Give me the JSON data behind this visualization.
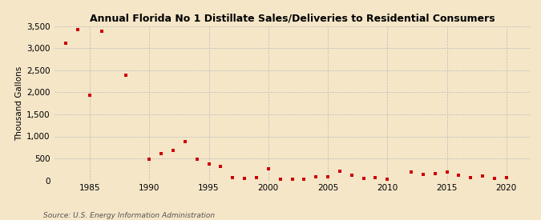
{
  "title": "Annual Florida No 1 Distillate Sales/Deliveries to Residential Consumers",
  "ylabel": "Thousand Gallons",
  "source": "Source: U.S. Energy Information Administration",
  "background_color": "#f5e6c8",
  "plot_bg_color": "#f5e6c8",
  "marker_color": "#cc0000",
  "grid_color": "#bbbbbb",
  "years": [
    1983,
    1984,
    1985,
    1986,
    1988,
    1990,
    1991,
    1992,
    1993,
    1994,
    1995,
    1996,
    1997,
    1998,
    1999,
    2000,
    2001,
    2002,
    2003,
    2004,
    2005,
    2006,
    2007,
    2008,
    2009,
    2010,
    2012,
    2013,
    2014,
    2015,
    2016,
    2017,
    2018,
    2019,
    2020
  ],
  "values": [
    3120,
    3420,
    1930,
    3390,
    2390,
    480,
    610,
    690,
    880,
    490,
    370,
    310,
    55,
    45,
    70,
    260,
    20,
    25,
    30,
    75,
    75,
    210,
    110,
    50,
    55,
    25,
    190,
    140,
    160,
    185,
    120,
    60,
    100,
    45,
    60
  ],
  "xlim": [
    1982,
    2022
  ],
  "ylim": [
    0,
    3500
  ],
  "yticks": [
    0,
    500,
    1000,
    1500,
    2000,
    2500,
    3000,
    3500
  ],
  "ytick_labels": [
    "0",
    "500",
    "1,000",
    "1,500",
    "2,000",
    "2,500",
    "3,000",
    "3,500"
  ],
  "xticks": [
    1985,
    1990,
    1995,
    2000,
    2005,
    2010,
    2015,
    2020
  ]
}
